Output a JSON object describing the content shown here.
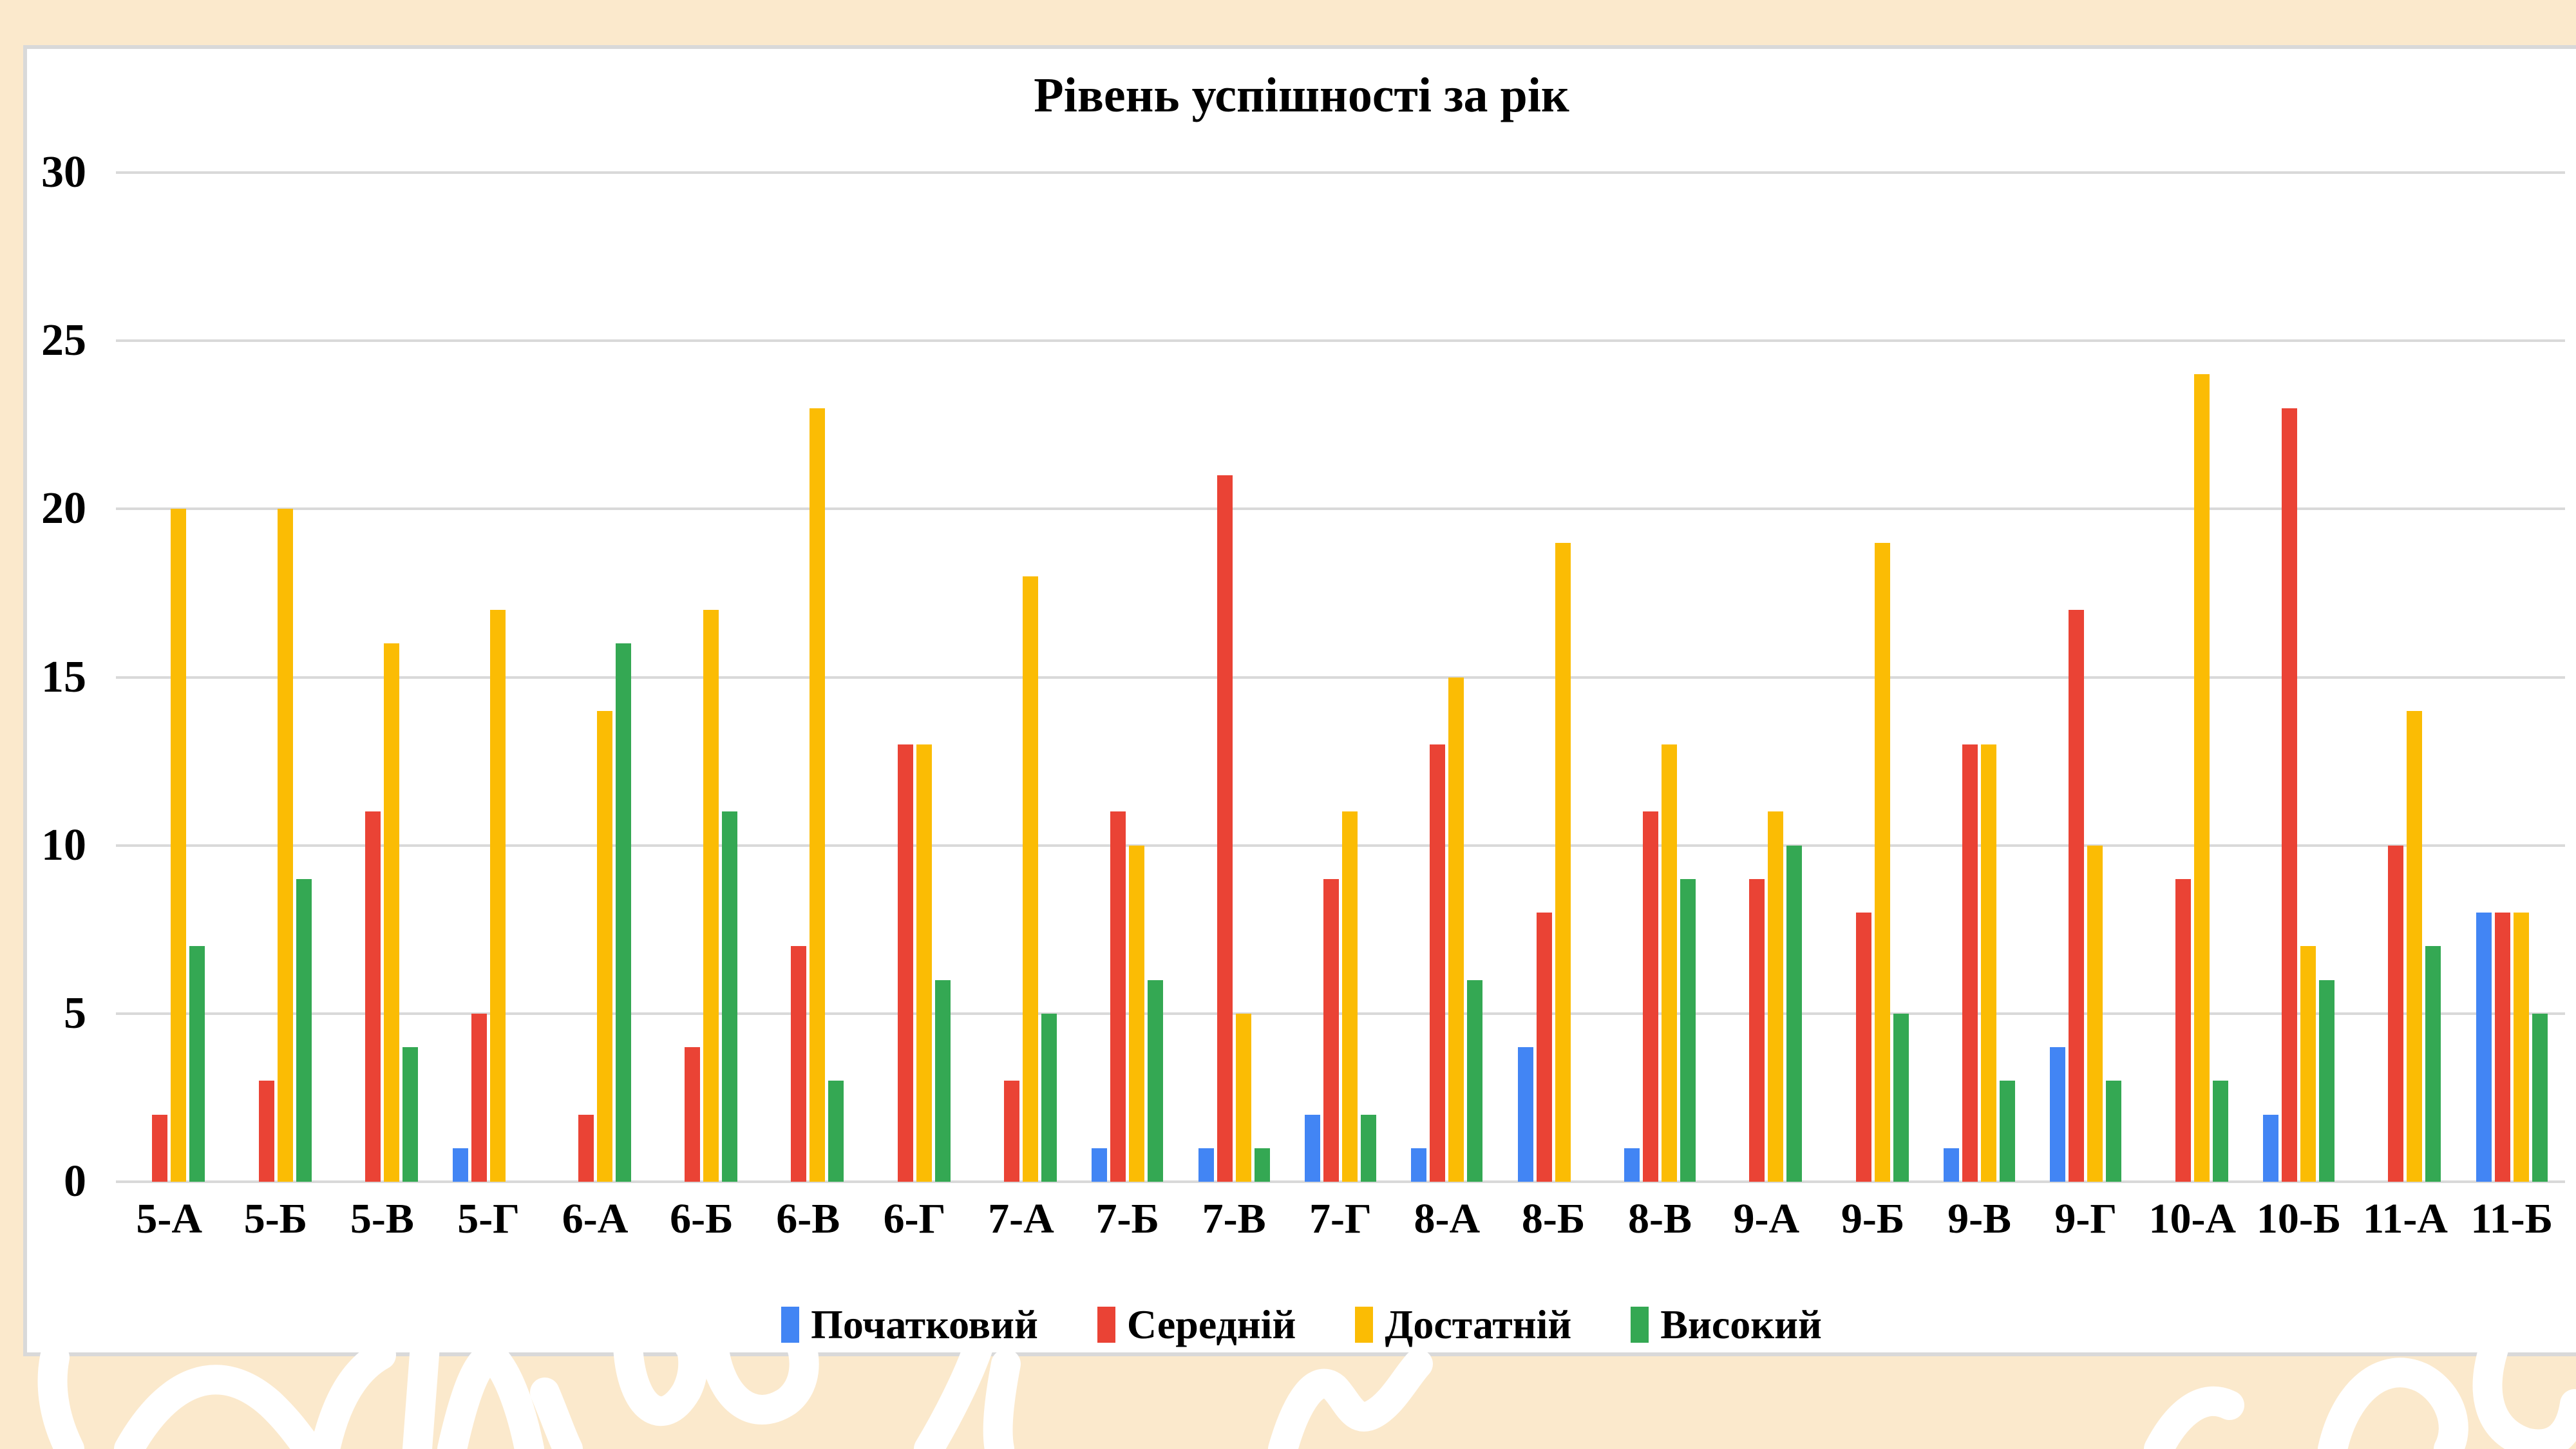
{
  "page": {
    "background_color": "#FBE9CC",
    "card_background": "#FFFFFF",
    "card_border_color": "#D9D9D9",
    "gridline_color": "#D9D9D9"
  },
  "chart_data": {
    "type": "bar",
    "title": "Рівень успішності за рік",
    "categories": [
      "5-А",
      "5-Б",
      "5-В",
      "5-Г",
      "6-А",
      "6-Б",
      "6-В",
      "6-Г",
      "7-А",
      "7-Б",
      "7-В",
      "7-Г",
      "8-А",
      "8-Б",
      "8-В",
      "9-А",
      "9-Б",
      "9-В",
      "9-Г",
      "10-А",
      "10-Б",
      "11-А",
      "11-Б"
    ],
    "series": [
      {
        "name": "Початковий",
        "color": "#4285F4",
        "values": [
          0,
          0,
          0,
          1,
          0,
          0,
          0,
          0,
          0,
          1,
          1,
          2,
          1,
          4,
          1,
          0,
          0,
          1,
          4,
          0,
          2,
          0,
          8
        ]
      },
      {
        "name": "Середній",
        "color": "#EA4335",
        "values": [
          2,
          3,
          11,
          5,
          2,
          4,
          7,
          13,
          3,
          11,
          21,
          9,
          13,
          8,
          11,
          9,
          8,
          13,
          17,
          9,
          23,
          10,
          8
        ]
      },
      {
        "name": "Достатній",
        "color": "#FBBC04",
        "values": [
          20,
          20,
          16,
          17,
          14,
          17,
          23,
          13,
          18,
          10,
          5,
          11,
          15,
          19,
          13,
          11,
          19,
          13,
          10,
          24,
          7,
          14,
          8
        ]
      },
      {
        "name": "Високий",
        "color": "#34A853",
        "values": [
          7,
          9,
          4,
          0,
          16,
          11,
          3,
          6,
          5,
          6,
          1,
          2,
          6,
          0,
          9,
          10,
          5,
          3,
          3,
          3,
          6,
          7,
          5
        ]
      }
    ],
    "xlabel": "",
    "ylabel": "",
    "ylim": [
      0,
      30
    ],
    "yticks": [
      0,
      5,
      10,
      15,
      20,
      25,
      30
    ],
    "grid": true,
    "legend_position": "bottom"
  }
}
